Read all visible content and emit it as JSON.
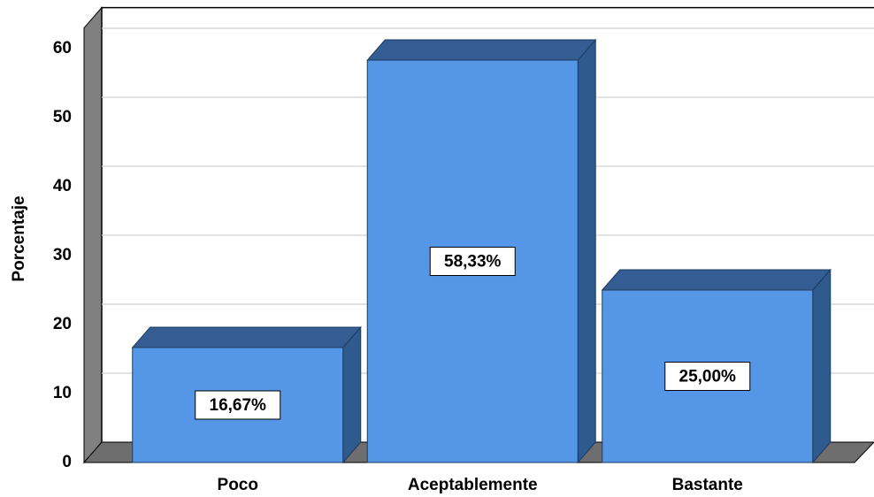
{
  "chart_data": {
    "type": "bar3d",
    "y_label": "Porcentaje",
    "categories": [
      "Poco",
      "Aceptablemente",
      "Bastante"
    ],
    "values": [
      16.67,
      58.33,
      25.0
    ],
    "value_labels": [
      "16,67%",
      "58,33%",
      "25,00%"
    ],
    "color": "#5597e6",
    "ylim": [
      0,
      63
    ],
    "yticks": [
      0,
      10,
      20,
      30,
      40,
      50,
      60
    ],
    "grid": true
  }
}
